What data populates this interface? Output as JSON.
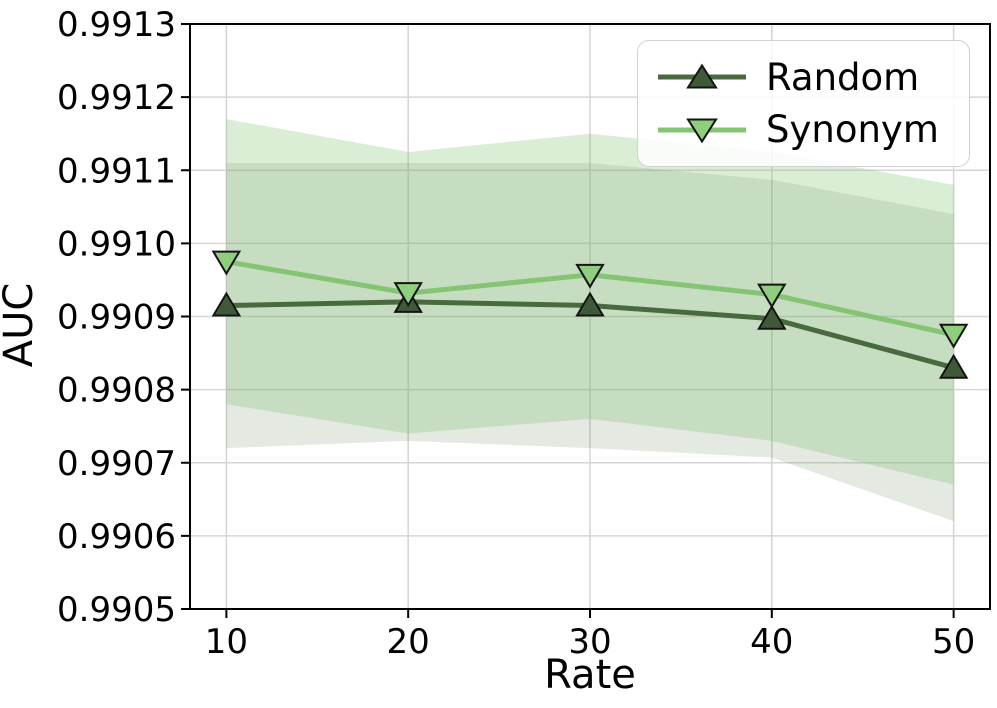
{
  "chart_data": {
    "type": "line",
    "title": "",
    "xlabel": "Rate",
    "ylabel": "AUC",
    "x": [
      10,
      20,
      30,
      40,
      50
    ],
    "xticks": [
      "10",
      "20",
      "30",
      "40",
      "50"
    ],
    "yticks": [
      "0.9905",
      "0.9906",
      "0.9907",
      "0.9908",
      "0.9909",
      "0.9910",
      "0.9911",
      "0.9912",
      "0.9913"
    ],
    "xlim": [
      8,
      52
    ],
    "ylim": [
      0.9905,
      0.9913
    ],
    "grid": true,
    "grid_color": "#d6d6d6",
    "axis_color": "#000000",
    "background": "#ffffff",
    "legend": {
      "position": "upper right",
      "entries": [
        "Random",
        "Synonym"
      ]
    },
    "series": [
      {
        "name": "Random",
        "marker": "triangle-up",
        "line_color": "#486a3e",
        "marker_fill": "#3e5a39",
        "marker_edge": "#141414",
        "band_opacity": 0.15,
        "values": [
          0.990915,
          0.99092,
          0.990915,
          0.990897,
          0.99083
        ],
        "band_upper": [
          0.99111,
          0.99111,
          0.99111,
          0.991087,
          0.99104
        ],
        "band_lower": [
          0.99072,
          0.99073,
          0.99072,
          0.990707,
          0.99062
        ]
      },
      {
        "name": "Synonym",
        "marker": "triangle-down",
        "line_color": "#85c474",
        "marker_fill": "#8fce7d",
        "marker_edge": "#141414",
        "band_opacity": 0.3,
        "values": [
          0.990975,
          0.990932,
          0.990957,
          0.99093,
          0.990875
        ],
        "band_upper": [
          0.99117,
          0.991125,
          0.99115,
          0.991125,
          0.99108
        ],
        "band_lower": [
          0.99078,
          0.99074,
          0.99076,
          0.99073,
          0.99067
        ]
      }
    ]
  }
}
